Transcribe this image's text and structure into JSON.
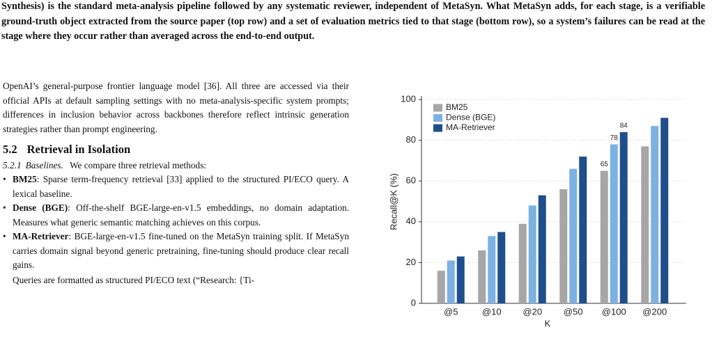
{
  "caption": "Synthesis) is the standard meta-analysis pipeline followed by any systematic reviewer, independent of MetaSyn. What MetaSyn adds, for each stage, is a verifiable ground-truth object extracted from the source paper (top row) and a set of evaluation metrics tied to that stage (bottom row), so a system’s failures can be read at the stage where they occur rather than averaged across the end-to-end output.",
  "body": {
    "intro": "OpenAI’s general-purpose frontier language model [36]. All three are accessed via their official APIs at default sampling settings with no meta-analysis-specific system prompts; differences in inclusion behavior across backbones therefore reflect intrinsic generation strategies rather than prompt engineering.",
    "section_heading": {
      "number": "5.2",
      "title": "Retrieval in Isolation"
    },
    "subsection": {
      "number": "5.2.1",
      "title": "Baselines.",
      "text": "We compare three retrieval methods:"
    },
    "bullets": [
      {
        "term": "BM25",
        "text": ": Sparse term-frequency retrieval [33] applied to the structured PI/ECO query. A lexical baseline."
      },
      {
        "term": "Dense (BGE)",
        "text": ": Off-the-shelf BGE-large-en-v1.5 embeddings, no domain adaptation. Measures what generic semantic matching achieves on this corpus."
      },
      {
        "term": "MA-Retriever",
        "text": ": BGE-large-en-v1.5 fine-tuned on the MetaSyn training split. If MetaSyn carries domain signal beyond generic pretraining, fine-tuning should produce clear recall gains."
      }
    ],
    "closing": "Queries are formatted as structured PI/ECO text (“Research: {Ti-"
  },
  "chart_data": {
    "type": "bar",
    "x_label": "K",
    "y_label": "Recall@K (%)",
    "categories": [
      "@5",
      "@10",
      "@20",
      "@50",
      "@100",
      "@200"
    ],
    "series": [
      {
        "name": "BM25",
        "color": "#a6a6a6",
        "values": [
          16,
          26,
          39,
          56,
          65,
          77
        ],
        "value_labels": [
          null,
          null,
          null,
          null,
          "65",
          null
        ]
      },
      {
        "name": "Dense (BGE)",
        "color": "#7cb1e3",
        "values": [
          21,
          33,
          48,
          66,
          78,
          87
        ],
        "value_labels": [
          null,
          null,
          null,
          null,
          "78",
          null
        ]
      },
      {
        "name": "MA-Retriever",
        "color": "#1f4e8c",
        "values": [
          23,
          35,
          53,
          72,
          84,
          91
        ],
        "value_labels": [
          null,
          null,
          null,
          null,
          "84",
          null
        ]
      }
    ],
    "ylim": [
      0,
      100
    ],
    "yticks": [
      0,
      20,
      40,
      60,
      80,
      100
    ],
    "grid": true,
    "legend": "upper left"
  }
}
